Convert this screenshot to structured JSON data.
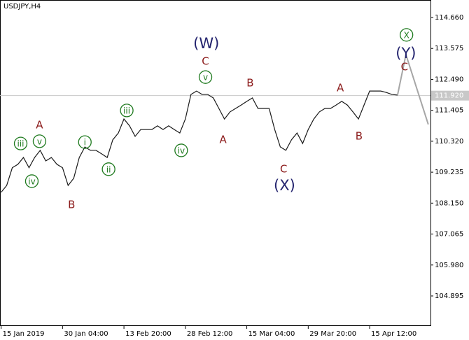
{
  "chart_data": {
    "type": "line",
    "title": "USDJPY,H4",
    "series": [
      {
        "color": "#1a1a1a",
        "x": [
          0,
          1,
          2,
          3,
          4,
          5,
          6,
          7,
          8,
          9,
          10,
          11,
          12,
          13,
          14,
          15,
          16,
          17,
          18,
          19,
          20,
          21,
          22,
          23,
          24,
          25,
          26,
          27,
          28,
          29,
          30,
          31,
          32,
          33,
          34,
          35,
          36,
          37,
          38,
          39,
          40,
          41,
          42,
          43,
          44,
          45,
          46,
          47,
          48,
          49,
          50,
          51,
          52,
          53,
          54,
          55,
          56,
          57,
          58,
          59,
          60,
          61,
          62,
          63,
          64,
          65,
          66,
          67,
          68,
          69,
          70,
          71
        ],
        "values": [
          108.53,
          108.77,
          109.39,
          109.51,
          109.75,
          109.39,
          109.75,
          110.0,
          109.63,
          109.75,
          109.51,
          109.39,
          108.77,
          109.02,
          109.75,
          110.12,
          110.0,
          110.0,
          109.88,
          109.75,
          110.37,
          110.61,
          111.1,
          110.86,
          110.49,
          110.73,
          110.73,
          110.73,
          110.86,
          110.73,
          110.86,
          110.73,
          110.61,
          111.1,
          111.96,
          112.08,
          111.96,
          111.96,
          111.84,
          111.47,
          111.1,
          111.35,
          111.47,
          111.59,
          111.72,
          111.84,
          111.47,
          111.47,
          111.47,
          110.73,
          110.12,
          110.0,
          110.37,
          110.61,
          110.24,
          110.73,
          111.1,
          111.35,
          111.47,
          111.47,
          111.59,
          111.72,
          111.59,
          111.35,
          111.1,
          111.59,
          112.08,
          112.08,
          112.08,
          112.03,
          111.96,
          111.94
        ]
      },
      {
        "color": "#a6a6a6",
        "x": [
          71,
          72.5,
          76.5
        ],
        "values": [
          111.94,
          113.36,
          110.91
        ]
      }
    ],
    "xlim": [
      -0.2,
      76.9
    ],
    "xticks": [
      {
        "value": 0,
        "label": "15 Jan 2019"
      },
      {
        "value": 11,
        "label": "30 Jan 04:00"
      },
      {
        "value": 22,
        "label": "13 Feb 20:00"
      },
      {
        "value": 33,
        "label": "28 Feb 12:00"
      },
      {
        "value": 44,
        "label": "15 Mar 04:00"
      },
      {
        "value": 55,
        "label": "29 Mar 20:00"
      },
      {
        "value": 66,
        "label": "15 Apr 12:00"
      }
    ],
    "ylim": [
      103.865,
      115.273
    ],
    "yticks": [
      {
        "value": 104.895,
        "label": "104.895"
      },
      {
        "value": 105.98,
        "label": "105.980"
      },
      {
        "value": 107.065,
        "label": "107.065"
      },
      {
        "value": 108.15,
        "label": "108.150"
      },
      {
        "value": 109.235,
        "label": "109.235"
      },
      {
        "value": 110.32,
        "label": "110.320"
      },
      {
        "value": 111.405,
        "label": "111.405"
      },
      {
        "value": 112.49,
        "label": "112.490"
      },
      {
        "value": 113.575,
        "label": "113.575"
      },
      {
        "value": 114.66,
        "label": "114.660"
      }
    ],
    "last_price": {
      "value": 111.92,
      "label": "111.920"
    },
    "annotations": [
      {
        "text": "A",
        "x": 6.875,
        "y": 110.91,
        "degree": "minor"
      },
      {
        "text": "iii",
        "x": 3.5,
        "y": 110.24,
        "degree": "minute"
      },
      {
        "text": "v",
        "x": 6.875,
        "y": 110.32,
        "degree": "minute"
      },
      {
        "text": "iv",
        "x": 5.5,
        "y": 108.92,
        "degree": "minute"
      },
      {
        "text": "i",
        "x": 15,
        "y": 110.29,
        "degree": "minute"
      },
      {
        "text": "ii",
        "x": 19.25,
        "y": 109.34,
        "degree": "minute"
      },
      {
        "text": "B",
        "x": 12.625,
        "y": 108.11,
        "degree": "minor"
      },
      {
        "text": "iii",
        "x": 22.5,
        "y": 111.4,
        "degree": "minute"
      },
      {
        "text": "iv",
        "x": 32.25,
        "y": 110.0,
        "degree": "minute"
      },
      {
        "text": "(W)",
        "x": 36.75,
        "y": 113.75,
        "degree": "intermediate"
      },
      {
        "text": "C",
        "x": 36.6,
        "y": 113.14,
        "degree": "minor"
      },
      {
        "text": "v",
        "x": 36.6,
        "y": 112.57,
        "degree": "minute"
      },
      {
        "text": "B",
        "x": 44.6,
        "y": 112.38,
        "degree": "minor"
      },
      {
        "text": "A",
        "x": 39.75,
        "y": 110.39,
        "degree": "minor"
      },
      {
        "text": "C",
        "x": 50.6,
        "y": 109.36,
        "degree": "minor"
      },
      {
        "text": "(X)",
        "x": 50.75,
        "y": 108.77,
        "degree": "intermediate"
      },
      {
        "text": "A",
        "x": 60.75,
        "y": 112.21,
        "degree": "minor"
      },
      {
        "text": "B",
        "x": 64.1,
        "y": 110.51,
        "degree": "minor"
      },
      {
        "text": "X",
        "x": 72.6,
        "y": 114.05,
        "degree": "minute"
      },
      {
        "text": "(Y)",
        "x": 72.5,
        "y": 113.41,
        "degree": "intermediate"
      },
      {
        "text": "C",
        "x": 72.25,
        "y": 112.94,
        "degree": "minor"
      }
    ]
  }
}
